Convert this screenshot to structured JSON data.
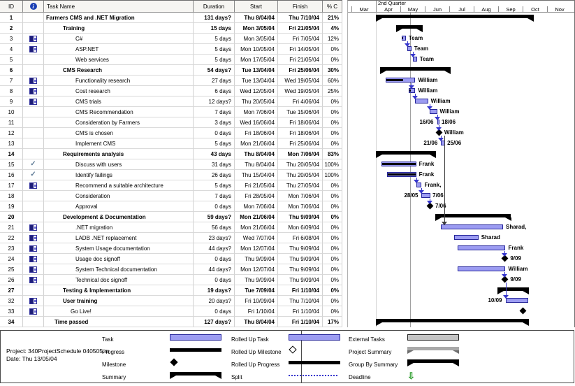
{
  "table": {
    "columns": [
      "ID",
      "",
      "Task Name",
      "Duration",
      "Start",
      "Finish",
      "% C"
    ],
    "info_header_icon": "info-icon"
  },
  "timeline": {
    "quarter_label": "2nd Quarter",
    "months": [
      "Mar",
      "Apr",
      "May",
      "Jun",
      "Jul",
      "Aug",
      "Sep",
      "Oct",
      "Nov"
    ]
  },
  "rows": [
    {
      "id": "1",
      "icon": null,
      "name": "Farmers CMS and .NET Migration",
      "level": "l0",
      "bold": true,
      "duration": "131 days?",
      "start": "Thu 8/04/04",
      "finish": "Thu 7/10/04",
      "pct": "21%",
      "bar": {
        "type": "summary",
        "from": [
          4,
          8
        ],
        "to": [
          10,
          7
        ]
      }
    },
    {
      "id": "2",
      "icon": null,
      "name": "Training",
      "level": "l1",
      "bold": true,
      "duration": "15 days",
      "start": "Mon 3/05/04",
      "finish": "Fri 21/05/04",
      "pct": "4%",
      "bar": {
        "type": "summary",
        "from": [
          5,
          3
        ],
        "to": [
          5,
          21
        ]
      }
    },
    {
      "id": "3",
      "icon": "calendar",
      "name": "C#",
      "level": "l2",
      "bold": false,
      "duration": "5 days",
      "start": "Mon 3/05/04",
      "finish": "Fri 7/05/04",
      "pct": "12%",
      "bar": {
        "type": "task",
        "from": [
          5,
          3
        ],
        "to": [
          5,
          7
        ],
        "progress": 12,
        "label": "Team"
      }
    },
    {
      "id": "4",
      "icon": "calendar",
      "name": "ASP.NET",
      "level": "l2",
      "bold": false,
      "duration": "5 days",
      "start": "Mon 10/05/04",
      "finish": "Fri 14/05/04",
      "pct": "0%",
      "bar": {
        "type": "task",
        "from": [
          5,
          10
        ],
        "to": [
          5,
          14
        ],
        "progress": 0,
        "label": "Team"
      }
    },
    {
      "id": "5",
      "icon": null,
      "name": "Web services",
      "level": "l2",
      "bold": false,
      "duration": "5 days",
      "start": "Mon 17/05/04",
      "finish": "Fri 21/05/04",
      "pct": "0%",
      "bar": {
        "type": "task",
        "from": [
          5,
          17
        ],
        "to": [
          5,
          21
        ],
        "progress": 0,
        "label": "Team"
      }
    },
    {
      "id": "6",
      "icon": null,
      "name": "CMS Research",
      "level": "l1",
      "bold": true,
      "duration": "54 days?",
      "start": "Tue 13/04/04",
      "finish": "Fri 25/06/04",
      "pct": "30%",
      "bar": {
        "type": "summary",
        "from": [
          4,
          13
        ],
        "to": [
          6,
          25
        ]
      }
    },
    {
      "id": "7",
      "icon": "calendar",
      "name": "Functionality research",
      "level": "l2",
      "bold": false,
      "duration": "27 days",
      "start": "Tue 13/04/04",
      "finish": "Wed 19/05/04",
      "pct": "60%",
      "bar": {
        "type": "task",
        "from": [
          4,
          13
        ],
        "to": [
          5,
          19
        ],
        "progress": 60,
        "label": "William"
      }
    },
    {
      "id": "8",
      "icon": "calendar",
      "name": "Cost research",
      "level": "l2",
      "bold": false,
      "duration": "6 days",
      "start": "Wed 12/05/04",
      "finish": "Wed 19/05/04",
      "pct": "25%",
      "bar": {
        "type": "task",
        "from": [
          5,
          12
        ],
        "to": [
          5,
          19
        ],
        "progress": 25,
        "label": "William"
      }
    },
    {
      "id": "9",
      "icon": "calendar",
      "name": "CMS trials",
      "level": "l2",
      "bold": false,
      "duration": "12 days?",
      "start": "Thu 20/05/04",
      "finish": "Fri 4/06/04",
      "pct": "0%",
      "bar": {
        "type": "task",
        "from": [
          5,
          20
        ],
        "to": [
          6,
          4
        ],
        "progress": 0,
        "label": "William"
      }
    },
    {
      "id": "10",
      "icon": null,
      "name": "CMS Recommendation",
      "level": "l2",
      "bold": false,
      "duration": "7 days",
      "start": "Mon 7/06/04",
      "finish": "Tue 15/06/04",
      "pct": "0%",
      "bar": {
        "type": "task",
        "from": [
          6,
          7
        ],
        "to": [
          6,
          15
        ],
        "progress": 0,
        "label": "William"
      }
    },
    {
      "id": "11",
      "icon": null,
      "name": "Consideration by Farmers",
      "level": "l2",
      "bold": false,
      "duration": "3 days",
      "start": "Wed 16/06/04",
      "finish": "Fri 18/06/04",
      "pct": "0%",
      "bar": {
        "type": "task",
        "from": [
          6,
          16
        ],
        "to": [
          6,
          18
        ],
        "progress": 0,
        "labelLeft": "16/06",
        "labelRight": "18/06"
      }
    },
    {
      "id": "12",
      "icon": null,
      "name": "CMS is chosen",
      "level": "l2",
      "bold": false,
      "duration": "0 days",
      "start": "Fri 18/06/04",
      "finish": "Fri 18/06/04",
      "pct": "0%",
      "bar": {
        "type": "milestone",
        "at": [
          6,
          18
        ],
        "label": "William"
      }
    },
    {
      "id": "13",
      "icon": null,
      "name": "Implement CMS",
      "level": "l2",
      "bold": false,
      "duration": "5 days",
      "start": "Mon 21/06/04",
      "finish": "Fri 25/06/04",
      "pct": "0%",
      "bar": {
        "type": "task",
        "from": [
          6,
          21
        ],
        "to": [
          6,
          25
        ],
        "progress": 0,
        "labelLeft": "21/06",
        "labelRight": "25/06"
      }
    },
    {
      "id": "14",
      "icon": null,
      "name": "Requirements analysis",
      "level": "l1",
      "bold": true,
      "duration": "43 days",
      "start": "Thu 8/04/04",
      "finish": "Mon 7/06/04",
      "pct": "83%",
      "bar": {
        "type": "summary",
        "from": [
          4,
          8
        ],
        "to": [
          6,
          7
        ]
      }
    },
    {
      "id": "15",
      "icon": "check",
      "name": "Discuss with users",
      "level": "l2",
      "bold": false,
      "duration": "31 days",
      "start": "Thu 8/04/04",
      "finish": "Thu 20/05/04",
      "pct": "100%",
      "bar": {
        "type": "task",
        "from": [
          4,
          8
        ],
        "to": [
          5,
          20
        ],
        "progress": 100,
        "label": "Frank"
      }
    },
    {
      "id": "16",
      "icon": "check",
      "name": "Identify failings",
      "level": "l2",
      "bold": false,
      "duration": "26 days",
      "start": "Thu 15/04/04",
      "finish": "Thu 20/05/04",
      "pct": "100%",
      "bar": {
        "type": "task",
        "from": [
          4,
          15
        ],
        "to": [
          5,
          20
        ],
        "progress": 100,
        "label": "Frank"
      }
    },
    {
      "id": "17",
      "icon": "calendar",
      "name": "Recommend a suitable architecture",
      "level": "l2",
      "bold": false,
      "duration": "5 days",
      "start": "Fri 21/05/04",
      "finish": "Thu 27/05/04",
      "pct": "0%",
      "bar": {
        "type": "task",
        "from": [
          5,
          21
        ],
        "to": [
          5,
          27
        ],
        "progress": 0,
        "label": "Frank,"
      }
    },
    {
      "id": "18",
      "icon": null,
      "name": "Consideration",
      "level": "l2",
      "bold": false,
      "duration": "7 days",
      "start": "Fri 28/05/04",
      "finish": "Mon 7/06/04",
      "pct": "0%",
      "bar": {
        "type": "task",
        "from": [
          5,
          28
        ],
        "to": [
          6,
          7
        ],
        "progress": 0,
        "labelLeft": "28/05",
        "labelRight": "7/06"
      }
    },
    {
      "id": "19",
      "icon": null,
      "name": "Approval",
      "level": "l2",
      "bold": false,
      "duration": "0 days",
      "start": "Mon 7/06/04",
      "finish": "Mon 7/06/04",
      "pct": "0%",
      "bar": {
        "type": "milestone",
        "at": [
          6,
          7
        ],
        "label": "7/06"
      }
    },
    {
      "id": "20",
      "icon": null,
      "name": "Development & Documentation",
      "level": "l1",
      "bold": true,
      "duration": "59 days?",
      "start": "Mon 21/06/04",
      "finish": "Thu 9/09/04",
      "pct": "0%",
      "bar": {
        "type": "summary",
        "from": [
          6,
          21
        ],
        "to": [
          9,
          9
        ]
      }
    },
    {
      "id": "21",
      "icon": "calendar",
      "name": ".NET migration",
      "level": "l2",
      "bold": false,
      "duration": "56 days",
      "start": "Mon 21/06/04",
      "finish": "Mon 6/09/04",
      "pct": "0%",
      "bar": {
        "type": "task",
        "from": [
          6,
          21
        ],
        "to": [
          9,
          6
        ],
        "progress": 0,
        "label": "Sharad,"
      }
    },
    {
      "id": "22",
      "icon": "calendar",
      "name": "LADB .NET replacement",
      "level": "l2",
      "bold": false,
      "duration": "23 days?",
      "start": "Wed 7/07/04",
      "finish": "Fri 6/08/04",
      "pct": "0%",
      "bar": {
        "type": "task",
        "from": [
          7,
          7
        ],
        "to": [
          8,
          6
        ],
        "progress": 0,
        "label": "Sharad"
      }
    },
    {
      "id": "23",
      "icon": "calendar",
      "name": "System Usage documentation",
      "level": "l2",
      "bold": false,
      "duration": "44 days?",
      "start": "Mon 12/07/04",
      "finish": "Thu 9/09/04",
      "pct": "0%",
      "bar": {
        "type": "task",
        "from": [
          7,
          12
        ],
        "to": [
          9,
          9
        ],
        "progress": 0,
        "label": "Frank"
      }
    },
    {
      "id": "24",
      "icon": "calendar",
      "name": "Usage doc signoff",
      "level": "l2",
      "bold": false,
      "duration": "0 days",
      "start": "Thu 9/09/04",
      "finish": "Thu 9/09/04",
      "pct": "0%",
      "bar": {
        "type": "milestone",
        "at": [
          9,
          9
        ],
        "label": "9/09"
      }
    },
    {
      "id": "25",
      "icon": "calendar",
      "name": "System Technical documentation",
      "level": "l2",
      "bold": false,
      "duration": "44 days?",
      "start": "Mon 12/07/04",
      "finish": "Thu 9/09/04",
      "pct": "0%",
      "bar": {
        "type": "task",
        "from": [
          7,
          12
        ],
        "to": [
          9,
          9
        ],
        "progress": 0,
        "label": "William"
      }
    },
    {
      "id": "26",
      "icon": "calendar",
      "name": "Technical doc signoff",
      "level": "l2",
      "bold": false,
      "duration": "0 days",
      "start": "Thu 9/09/04",
      "finish": "Thu 9/09/04",
      "pct": "0%",
      "bar": {
        "type": "milestone",
        "at": [
          9,
          9
        ],
        "label": "9/09"
      }
    },
    {
      "id": "27",
      "icon": null,
      "name": "Testing & Implementation",
      "level": "l1",
      "bold": true,
      "duration": "19 days?",
      "start": "Tue 7/09/04",
      "finish": "Fri 1/10/04",
      "pct": "0%",
      "bar": {
        "type": "summary",
        "from": [
          9,
          7
        ],
        "to": [
          10,
          1
        ]
      }
    },
    {
      "id": "32",
      "icon": "calendar",
      "name": "User training",
      "level": "l1",
      "bold": false,
      "boldName": true,
      "duration": "20 days?",
      "start": "Fri 10/09/04",
      "finish": "Thu 7/10/04",
      "pct": "0%",
      "bar": {
        "type": "task",
        "from": [
          9,
          10
        ],
        "to": [
          10,
          7
        ],
        "progress": 0,
        "labelLeft": "10/09"
      }
    },
    {
      "id": "33",
      "icon": "calendar",
      "name": "Go Live!",
      "level": "gl",
      "bold": false,
      "duration": "0 days",
      "start": "Fri 1/10/04",
      "finish": "Fri 1/10/04",
      "pct": "0%",
      "bar": {
        "type": "milestone",
        "at": [
          10,
          1
        ]
      }
    },
    {
      "id": "34",
      "icon": null,
      "name": "Time passed",
      "level": "tp",
      "bold": true,
      "duration": "127 days?",
      "start": "Thu 8/04/04",
      "finish": "Fri 1/10/04",
      "pct": "17%",
      "bar": {
        "type": "summary",
        "from": [
          4,
          8
        ],
        "to": [
          10,
          1
        ]
      }
    }
  ],
  "links": [
    {
      "x": [
        5,
        10
      ],
      "from": 2,
      "to": 3
    },
    {
      "x": [
        5,
        17
      ],
      "from": 3,
      "to": 4
    },
    {
      "x": [
        5,
        15
      ],
      "from": 6,
      "to": 7
    },
    {
      "x": [
        5,
        20
      ],
      "from": 7,
      "to": 8
    },
    {
      "x": [
        6,
        7
      ],
      "from": 8,
      "to": 9
    },
    {
      "x": [
        6,
        16
      ],
      "from": 9,
      "to": 10
    },
    {
      "x": [
        6,
        18
      ],
      "from": 10,
      "to": 11
    },
    {
      "x": [
        6,
        21
      ],
      "from": 11,
      "to": 12
    },
    {
      "x": [
        5,
        21
      ],
      "from": 15,
      "to": 16
    },
    {
      "x": [
        5,
        28
      ],
      "from": 16,
      "to": 17
    },
    {
      "x": [
        6,
        7
      ],
      "from": 17,
      "to": 18
    },
    {
      "x": [
        9,
        9
      ],
      "from": 22,
      "to": 23
    },
    {
      "x": [
        9,
        9
      ],
      "from": 24,
      "to": 25
    },
    {
      "x": [
        9,
        10
      ],
      "from": 25,
      "to": 27
    },
    {
      "x": [
        6,
        25
      ],
      "from": 11,
      "to": 20,
      "dark": true
    }
  ],
  "current_date_line": [
    5,
    13
  ],
  "quarter_start_line": [
    4,
    1
  ],
  "footer": {
    "project_line": "Project: 340ProjectSchedule 040505.m",
    "date_line": "Date: Thu 13/05/04"
  },
  "legend": {
    "columns": [
      [
        {
          "label": "Task",
          "swatch": "task"
        },
        {
          "label": "Progress",
          "swatch": "progress"
        },
        {
          "label": "Milestone",
          "swatch": "milestone"
        },
        {
          "label": "Summary",
          "swatch": "summary"
        }
      ],
      [
        {
          "label": "Rolled Up Task",
          "swatch": "task"
        },
        {
          "label": "Rolled Up Milestone",
          "swatch": "milestone-open"
        },
        {
          "label": "Rolled Up Progress",
          "swatch": "progress"
        },
        {
          "label": "Split",
          "swatch": "split"
        }
      ],
      [
        {
          "label": "External Tasks",
          "swatch": "external"
        },
        {
          "label": "Project Summary",
          "swatch": "summary-gray"
        },
        {
          "label": "Group By Summary",
          "swatch": "summary"
        },
        {
          "label": "Deadline",
          "swatch": "deadline"
        }
      ]
    ],
    "deadline_glyph": "⇩"
  },
  "colors": {
    "task_fill": "#9c9cf2",
    "task_border": "#26269a",
    "black_bar": "#000000",
    "link_blue": "#3535cd",
    "link_dark": "#3c3c3c",
    "external_gray": "#c4c4c4",
    "project_summary_gray": "#a9a9a9",
    "deadline_green": "#2f9e2f",
    "current_date_line": "#a0a0a0"
  }
}
